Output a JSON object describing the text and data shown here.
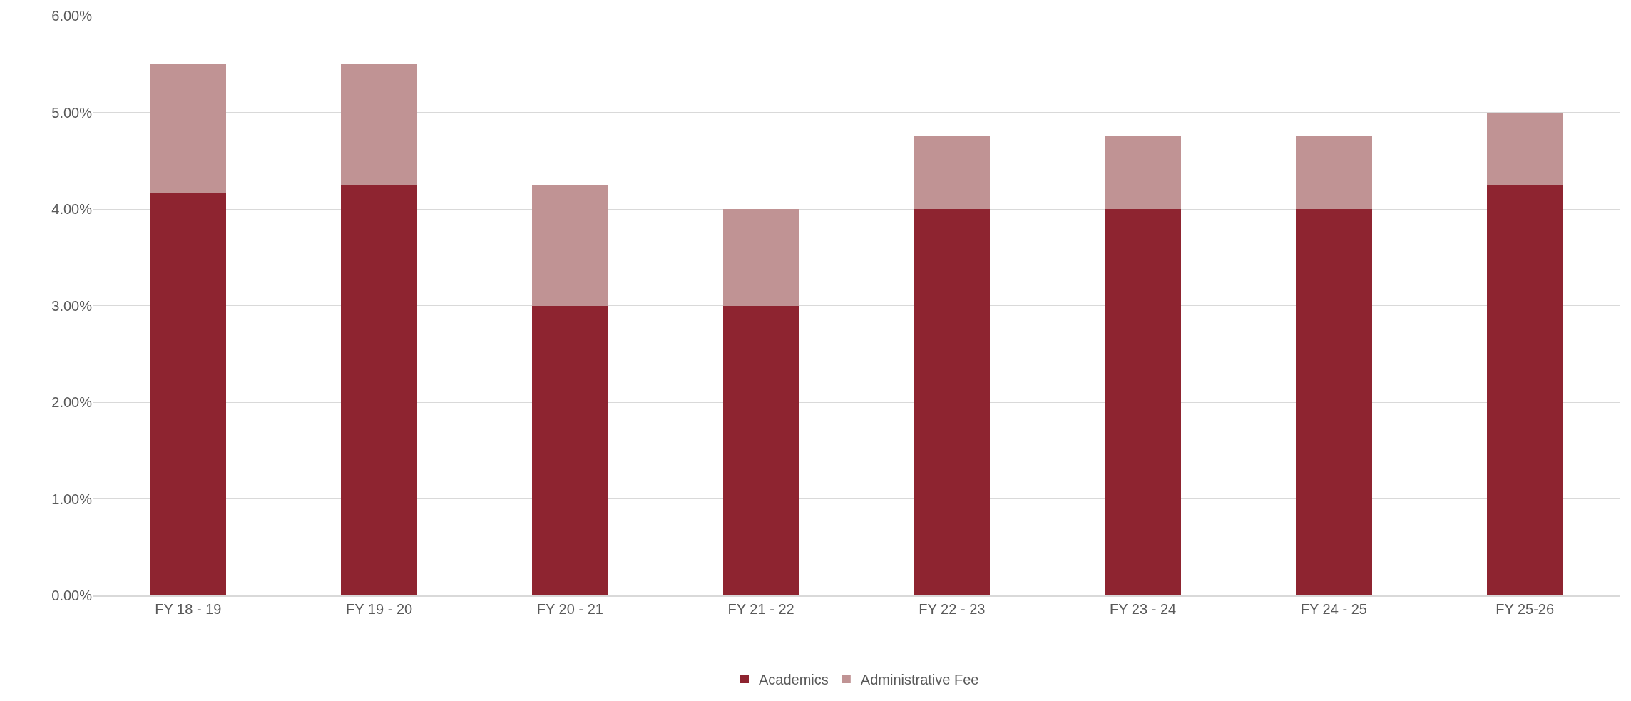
{
  "chart_data": {
    "type": "bar",
    "stacked": true,
    "categories": [
      "FY 18 - 19",
      "FY 19 - 20",
      "FY 20 - 21",
      "FY 21 - 22",
      "FY 22 - 23",
      "FY 23 - 24",
      "FY 24 - 25",
      "FY 25-26"
    ],
    "series": [
      {
        "name": "Academics",
        "color": "#8e2430",
        "values": [
          4.17,
          4.25,
          3.0,
          3.0,
          4.0,
          4.0,
          4.0,
          4.25
        ]
      },
      {
        "name": "Administrative Fee",
        "color": "#c09394",
        "values": [
          1.33,
          1.25,
          1.25,
          1.0,
          0.75,
          0.75,
          0.75,
          0.75
        ]
      }
    ],
    "ylim": [
      0,
      6
    ],
    "yticks": [
      {
        "value": 0,
        "label": "0.00%"
      },
      {
        "value": 1,
        "label": "1.00%"
      },
      {
        "value": 2,
        "label": "2.00%"
      },
      {
        "value": 3,
        "label": "3.00%"
      },
      {
        "value": 4,
        "label": "4.00%"
      },
      {
        "value": 5,
        "label": "5.00%"
      },
      {
        "value": 6,
        "label": "6.00%"
      }
    ],
    "grid": "y",
    "legend": "bottom"
  }
}
